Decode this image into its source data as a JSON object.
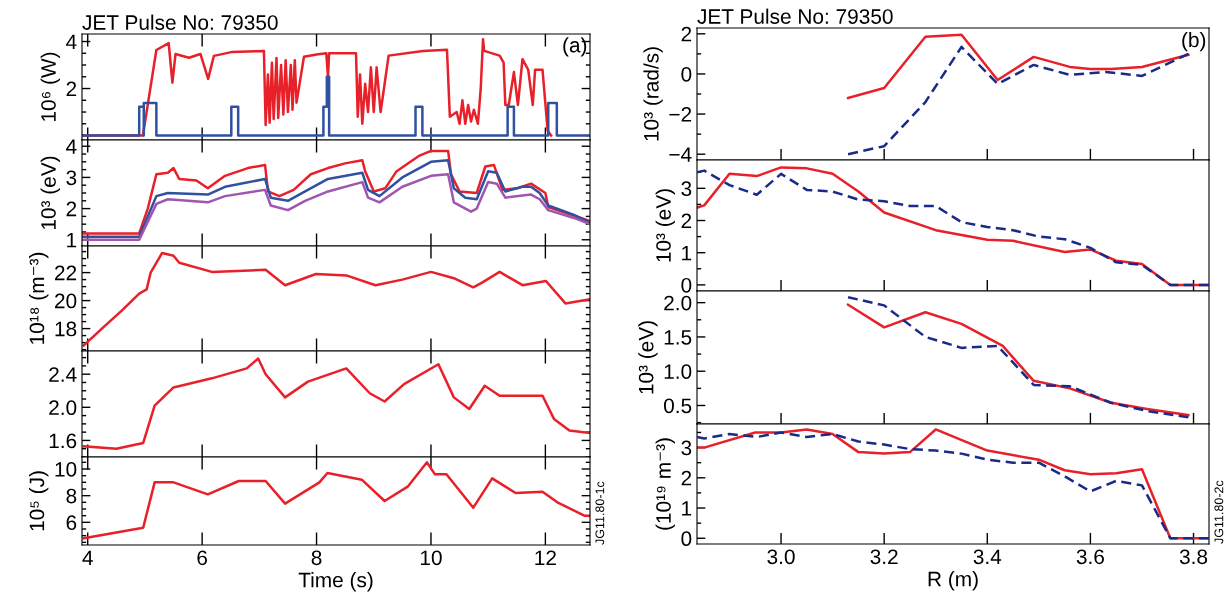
{
  "chart_data": [
    {
      "type": "line",
      "title": "JET Pulse No: 79350",
      "ylabel": "10⁶ (W)",
      "xlim": [
        3.9,
        12.78
      ],
      "xticks": [
        4,
        6,
        8,
        10,
        12
      ],
      "ylim": [
        -0.19,
        4.32
      ],
      "yticks": [
        2,
        4
      ],
      "tick_labels": "y",
      "annotations": [
        "(a)"
      ],
      "series": [
        {
          "color": "#e8202a",
          "line_style": "solid",
          "x": [
            3.9,
            4.965,
            5.2,
            5.415,
            5.48,
            5.535,
            5.77,
            5.97,
            6.105,
            6.205,
            6.51,
            7.08,
            7.11,
            7.15,
            7.18,
            7.22,
            7.25,
            7.3,
            7.33,
            7.38,
            7.42,
            7.46,
            7.5,
            7.55,
            7.58,
            7.62,
            7.65,
            7.78,
            8.0,
            8.17,
            8.2,
            8.22,
            8.69,
            8.72,
            8.76,
            8.8,
            8.85,
            8.9,
            8.95,
            9.0,
            9.05,
            9.12,
            9.26,
            9.86,
            10.28,
            10.33,
            10.45,
            10.5,
            10.55,
            10.6,
            10.65,
            10.7,
            10.75,
            10.82,
            10.87,
            10.91,
            10.93,
            11.2,
            11.27,
            11.3,
            11.36,
            11.45,
            11.52,
            11.6,
            11.7,
            11.78,
            11.82,
            11.95,
            12.04,
            12.1
          ],
          "values": [
            0,
            0,
            3.64,
            3.93,
            2.25,
            3.47,
            3.31,
            3.47,
            2.41,
            3.39,
            3.55,
            3.6,
            0.45,
            2.6,
            0.55,
            3.1,
            0.7,
            3.3,
            0.75,
            3.0,
            0.9,
            3.2,
            1.0,
            3.0,
            1.1,
            3.2,
            1.4,
            3.35,
            3.45,
            3.5,
            2.5,
            3.5,
            3.5,
            0.8,
            2.6,
            0.5,
            2.2,
            1.0,
            2.9,
            1.0,
            2.9,
            1.0,
            3.4,
            3.6,
            3.65,
            0.8,
            1.0,
            0.5,
            1.5,
            0.5,
            1.3,
            0.6,
            1.1,
            0.5,
            2.0,
            4.1,
            3.6,
            3.4,
            3.1,
            1.3,
            1.3,
            2.7,
            1.3,
            3.25,
            2.8,
            1.3,
            2.8,
            2.8,
            0.2,
            0.0
          ]
        },
        {
          "color": "#3050a0",
          "line_style": "solid",
          "x": [
            3.9,
            4.9,
            4.9,
            4.98,
            4.98,
            4.98,
            5.2,
            5.2,
            6.51,
            6.51,
            6.63,
            6.63,
            8.12,
            8.12,
            8.18,
            8.18,
            8.22,
            8.22,
            9.73,
            9.73,
            9.85,
            9.85,
            11.34,
            11.34,
            11.45,
            11.45,
            12.05,
            12.05,
            12.2,
            12.2,
            12.78
          ],
          "values": [
            0,
            0,
            1.23,
            1.23,
            0,
            1.38,
            1.38,
            0,
            0,
            1.23,
            1.23,
            0,
            0,
            1.23,
            1.23,
            2.5,
            2.5,
            0,
            0,
            1.23,
            1.23,
            0,
            0,
            1.23,
            1.23,
            0,
            0,
            1.38,
            1.38,
            0,
            0
          ]
        }
      ]
    },
    {
      "type": "line",
      "ylabel": "10³ (eV)",
      "xlim": [
        3.9,
        12.78
      ],
      "xticks": [
        4,
        6,
        8,
        10,
        12
      ],
      "ylim": [
        0.8,
        4.2
      ],
      "yticks": [
        1,
        2,
        3,
        4
      ],
      "tick_labels": "y",
      "series": [
        {
          "color": "#e8202a",
          "line_style": "solid",
          "x": [
            3.9,
            4.9,
            5.05,
            5.2,
            5.4,
            5.5,
            5.6,
            5.9,
            6.1,
            6.4,
            6.8,
            7.1,
            7.15,
            7.35,
            7.6,
            7.9,
            8.2,
            8.5,
            8.8,
            8.85,
            9.0,
            9.2,
            9.4,
            9.8,
            10.0,
            10.3,
            10.35,
            10.5,
            10.8,
            10.95,
            11.1,
            11.25,
            11.5,
            11.75,
            12.0,
            12.05,
            12.3,
            12.78
          ],
          "values": [
            1.2,
            1.2,
            2.0,
            3.1,
            3.15,
            3.3,
            2.95,
            2.9,
            2.65,
            3.05,
            3.3,
            3.4,
            2.55,
            2.4,
            2.6,
            3.1,
            3.3,
            3.45,
            3.55,
            3.2,
            2.55,
            2.65,
            3.2,
            3.7,
            3.85,
            3.85,
            3.1,
            2.55,
            2.5,
            3.35,
            3.4,
            2.6,
            2.65,
            2.8,
            2.5,
            2.05,
            1.9,
            1.6
          ]
        },
        {
          "color": "#3050a0",
          "line_style": "solid",
          "x": [
            3.9,
            4.9,
            5.2,
            5.4,
            6.1,
            6.4,
            7.1,
            7.2,
            7.5,
            7.8,
            8.2,
            8.8,
            8.9,
            9.1,
            9.5,
            10.0,
            10.3,
            10.4,
            10.6,
            10.8,
            11.0,
            11.15,
            11.3,
            11.6,
            11.75,
            11.9,
            12.05,
            12.5,
            12.78
          ],
          "values": [
            1.1,
            1.1,
            2.4,
            2.5,
            2.45,
            2.7,
            2.95,
            2.35,
            2.25,
            2.55,
            2.95,
            3.15,
            2.6,
            2.4,
            3.0,
            3.5,
            3.55,
            2.65,
            2.35,
            2.3,
            3.2,
            3.15,
            2.55,
            2.7,
            2.7,
            2.5,
            2.1,
            1.8,
            1.55
          ]
        },
        {
          "color": "#a055b0",
          "line_style": "solid",
          "x": [
            3.9,
            4.9,
            5.2,
            5.4,
            6.1,
            6.4,
            7.1,
            7.2,
            7.5,
            7.8,
            8.2,
            8.8,
            8.9,
            9.1,
            9.5,
            10.0,
            10.3,
            10.4,
            10.7,
            10.8,
            11.0,
            11.15,
            11.3,
            11.75,
            11.9,
            12.05,
            12.5,
            12.78
          ],
          "values": [
            1.0,
            1.0,
            2.15,
            2.3,
            2.2,
            2.4,
            2.6,
            2.1,
            1.95,
            2.25,
            2.55,
            2.85,
            2.35,
            2.2,
            2.7,
            3.05,
            3.1,
            2.2,
            1.9,
            2.0,
            2.85,
            2.8,
            2.35,
            2.45,
            2.3,
            1.95,
            1.7,
            1.5
          ]
        }
      ]
    },
    {
      "type": "line",
      "ylabel": "10¹⁸ (m⁻³)",
      "xlim": [
        3.9,
        12.78
      ],
      "xticks": [
        4,
        6,
        8,
        10,
        12
      ],
      "ylim": [
        16.4,
        23.9
      ],
      "yticks": [
        18,
        20,
        22
      ],
      "tick_labels": "y",
      "series": [
        {
          "color": "#e8202a",
          "line_style": "solid",
          "x": [
            3.93,
            4.3,
            4.6,
            4.9,
            5.03,
            5.1,
            5.3,
            5.5,
            5.6,
            6.17,
            7.11,
            7.45,
            7.99,
            8.52,
            9.03,
            9.5,
            10.0,
            10.4,
            10.74,
            10.9,
            11.2,
            11.6,
            12.01,
            12.35,
            12.5,
            12.78
          ],
          "values": [
            16.8,
            18.2,
            19.3,
            20.5,
            20.8,
            22.0,
            23.4,
            23.2,
            22.7,
            22.05,
            22.2,
            21.1,
            21.9,
            21.8,
            21.1,
            21.5,
            22.05,
            21.6,
            20.95,
            21.3,
            22.05,
            21.1,
            21.4,
            19.8,
            19.9,
            20.1
          ]
        }
      ]
    },
    {
      "type": "line",
      "xlim": [
        3.9,
        12.78
      ],
      "xticks": [
        4,
        6,
        8,
        10,
        12
      ],
      "ylim": [
        1.4,
        2.68
      ],
      "yticks": [
        {
          "value": 1.6,
          "label": "1.6"
        },
        {
          "value": 2.0,
          "label": "2.0"
        },
        {
          "value": 2.4,
          "label": "2.4"
        }
      ],
      "tick_labels": "y",
      "series": [
        {
          "color": "#e8202a",
          "line_style": "solid",
          "x": [
            3.93,
            4.5,
            4.97,
            5.17,
            5.5,
            6.17,
            6.78,
            6.98,
            7.11,
            7.45,
            7.85,
            8.52,
            8.93,
            9.19,
            9.53,
            10.13,
            10.4,
            10.67,
            10.94,
            11.2,
            11.95,
            12.15,
            12.42,
            12.78
          ],
          "values": [
            1.53,
            1.5,
            1.57,
            2.02,
            2.24,
            2.35,
            2.47,
            2.59,
            2.4,
            2.12,
            2.31,
            2.47,
            2.17,
            2.07,
            2.28,
            2.52,
            2.12,
            1.98,
            2.26,
            2.14,
            2.14,
            1.86,
            1.72,
            1.69
          ]
        }
      ]
    },
    {
      "type": "line",
      "ylabel": "10⁵ (J)",
      "xlabel": "Time (s)",
      "xlim": [
        3.9,
        12.78
      ],
      "xticks": [
        4,
        6,
        8,
        10,
        12
      ],
      "ylim": [
        4.3,
        10.9
      ],
      "yticks": [
        6,
        8,
        10
      ],
      "annotations": [
        "JG11.80-1c"
      ],
      "series": [
        {
          "color": "#e8202a",
          "line_style": "solid",
          "x": [
            3.93,
            4.97,
            5.17,
            5.5,
            6.1,
            6.64,
            7.11,
            7.45,
            8.05,
            8.19,
            8.79,
            9.19,
            9.6,
            9.93,
            10.07,
            10.27,
            10.74,
            11.07,
            11.48,
            11.95,
            12.21,
            12.68,
            12.78
          ],
          "values": [
            4.8,
            5.6,
            9.0,
            9.0,
            8.1,
            9.1,
            9.1,
            7.4,
            9.0,
            9.7,
            9.2,
            7.6,
            8.7,
            10.5,
            9.6,
            9.6,
            7.1,
            9.3,
            8.2,
            8.3,
            7.5,
            6.5,
            6.5
          ]
        }
      ]
    },
    {
      "type": "line",
      "title": "JET Pulse No: 79350",
      "ylabel": "10³ (rad/s)",
      "xlim": [
        2.837,
        3.83
      ],
      "xticks": [
        3.0,
        3.2,
        3.4,
        3.6,
        3.8
      ],
      "ylim": [
        -4.29,
        2.29
      ],
      "yticks": [
        {
          "value": -4,
          "label": "−4"
        },
        {
          "value": -2,
          "label": "−2"
        },
        0,
        2
      ],
      "tick_labels": "y",
      "annotations": [
        "(b)"
      ],
      "series": [
        {
          "color": "#e8202a",
          "line_style": "solid",
          "x": [
            3.13,
            3.2,
            3.28,
            3.35,
            3.42,
            3.49,
            3.56,
            3.6,
            3.64,
            3.7,
            3.79
          ],
          "values": [
            -1.2,
            -0.7,
            1.85,
            1.95,
            -0.3,
            0.85,
            0.35,
            0.25,
            0.25,
            0.35,
            0.95
          ]
        },
        {
          "color": "#1a2a8a",
          "line_style": "dashed",
          "x": [
            3.13,
            3.2,
            3.28,
            3.35,
            3.42,
            3.49,
            3.56,
            3.63,
            3.7,
            3.79
          ],
          "values": [
            -4.0,
            -3.6,
            -1.4,
            1.35,
            -0.5,
            0.45,
            -0.05,
            0.1,
            -0.1,
            1.0
          ]
        }
      ]
    },
    {
      "type": "line",
      "ylabel": "10³ (eV)",
      "xlim": [
        2.837,
        3.83
      ],
      "xticks": [
        3.0,
        3.2,
        3.4,
        3.6,
        3.8
      ],
      "ylim": [
        -0.19,
        3.88
      ],
      "yticks": [
        0,
        1,
        2,
        3
      ],
      "tick_labels": "y",
      "series": [
        {
          "color": "#e8202a",
          "line_style": "solid",
          "x": [
            2.837,
            2.851,
            2.9,
            2.953,
            3.0,
            3.05,
            3.1,
            3.15,
            3.2,
            3.3,
            3.4,
            3.45,
            3.55,
            3.6,
            3.65,
            3.7,
            3.755,
            3.83
          ],
          "values": [
            2.4,
            2.47,
            3.45,
            3.38,
            3.65,
            3.62,
            3.45,
            2.9,
            2.25,
            1.7,
            1.4,
            1.37,
            1.02,
            1.1,
            0.75,
            0.65,
            0.0,
            0.0
          ]
        },
        {
          "color": "#1a2a8a",
          "line_style": "dashed",
          "x": [
            2.837,
            2.851,
            2.9,
            2.953,
            3.0,
            3.05,
            3.1,
            3.15,
            3.2,
            3.25,
            3.3,
            3.35,
            3.4,
            3.45,
            3.5,
            3.55,
            3.6,
            3.65,
            3.7,
            3.755,
            3.83
          ],
          "values": [
            3.5,
            3.55,
            3.1,
            2.8,
            3.45,
            2.95,
            2.9,
            2.65,
            2.6,
            2.45,
            2.45,
            1.95,
            1.8,
            1.7,
            1.5,
            1.42,
            1.15,
            0.7,
            0.62,
            0.0,
            0.0
          ]
        }
      ]
    },
    {
      "type": "line",
      "ylabel": "10³ (eV)",
      "xlim": [
        2.837,
        3.83
      ],
      "xticks": [
        3.0,
        3.2,
        3.4,
        3.6,
        3.8
      ],
      "ylim": [
        0.23,
        2.17
      ],
      "yticks": [
        {
          "value": 0.5,
          "label": "0.5"
        },
        {
          "value": 1.0,
          "label": "1.0"
        },
        {
          "value": 1.5,
          "label": "1.5"
        },
        {
          "value": 2.0,
          "label": "2.0"
        }
      ],
      "tick_labels": "y",
      "series": [
        {
          "color": "#e8202a",
          "line_style": "solid",
          "x": [
            3.13,
            3.2,
            3.28,
            3.35,
            3.43,
            3.49,
            3.56,
            3.64,
            3.71,
            3.79
          ],
          "values": [
            1.97,
            1.64,
            1.86,
            1.69,
            1.37,
            0.86,
            0.75,
            0.54,
            0.45,
            0.36
          ]
        },
        {
          "color": "#1a2a8a",
          "line_style": "dashed",
          "x": [
            3.13,
            3.2,
            3.28,
            3.35,
            3.42,
            3.49,
            3.56,
            3.64,
            3.71,
            3.79
          ],
          "values": [
            2.08,
            1.96,
            1.5,
            1.34,
            1.37,
            0.8,
            0.78,
            0.54,
            0.42,
            0.33
          ]
        }
      ]
    },
    {
      "type": "line",
      "ylabel": "(10¹⁹ m⁻³)",
      "xlabel": "R (m)",
      "xlim": [
        2.837,
        3.83
      ],
      "xticks": [
        {
          "value": 3.0,
          "label": "3.0"
        },
        {
          "value": 3.2,
          "label": "3.2"
        },
        {
          "value": 3.4,
          "label": "3.4"
        },
        {
          "value": 3.6,
          "label": "3.6"
        },
        {
          "value": 3.8,
          "label": "3.8"
        }
      ],
      "ylim": [
        -0.19,
        3.78
      ],
      "yticks": [
        0,
        1,
        2,
        3
      ],
      "annotations": [
        "JG11.80-2c"
      ],
      "series": [
        {
          "color": "#e8202a",
          "line_style": "solid",
          "x": [
            2.837,
            2.851,
            2.95,
            3.0,
            3.05,
            3.1,
            3.15,
            3.2,
            3.25,
            3.3,
            3.4,
            3.5,
            3.55,
            3.6,
            3.65,
            3.7,
            3.755,
            3.83
          ],
          "values": [
            3.0,
            3.0,
            3.5,
            3.5,
            3.6,
            3.45,
            2.85,
            2.8,
            2.85,
            3.6,
            2.9,
            2.6,
            2.25,
            2.12,
            2.15,
            2.28,
            0.0,
            0.0
          ]
        },
        {
          "color": "#1a2a8a",
          "line_style": "dashed",
          "x": [
            2.837,
            2.851,
            2.9,
            2.953,
            3.0,
            3.05,
            3.1,
            3.15,
            3.2,
            3.25,
            3.3,
            3.35,
            3.4,
            3.45,
            3.5,
            3.55,
            3.6,
            3.65,
            3.7,
            3.755,
            3.83
          ],
          "values": [
            3.35,
            3.3,
            3.45,
            3.35,
            3.5,
            3.35,
            3.45,
            3.2,
            3.1,
            2.95,
            2.9,
            2.8,
            2.6,
            2.5,
            2.5,
            2.05,
            1.55,
            1.9,
            1.75,
            0.0,
            0.0
          ]
        }
      ]
    }
  ]
}
